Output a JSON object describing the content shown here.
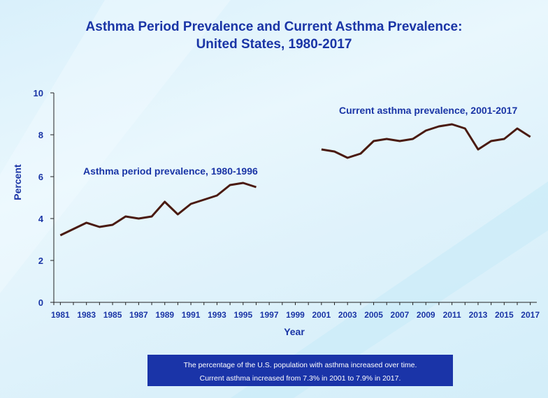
{
  "title_line1": "Asthma Period Prevalence and Current Asthma Prevalence:",
  "title_line2": "United States, 1980-2017",
  "note_line1": "The percentage of the U.S. population with asthma increased over time.",
  "note_line2": "Current asthma increased from 7.3% in 2001 to 7.9% in 2017.",
  "colors": {
    "title": "#1a35a6",
    "axis_text": "#1a35a6",
    "line": "#4a1a10",
    "note_bg": "#1a34a8"
  },
  "chart_data": {
    "type": "line",
    "title": "Asthma Period Prevalence and Current Asthma Prevalence: United States, 1980-2017",
    "xlabel": "Year",
    "ylabel": "Percent",
    "ylim": [
      0,
      10
    ],
    "xlim": [
      1980.5,
      2017.5
    ],
    "yticks": [
      0,
      2,
      4,
      6,
      8,
      10
    ],
    "xticks": [
      1981,
      1983,
      1985,
      1987,
      1989,
      1991,
      1993,
      1995,
      1997,
      1999,
      2001,
      2003,
      2005,
      2007,
      2009,
      2011,
      2013,
      2015,
      2017
    ],
    "grid": false,
    "series": [
      {
        "name": "Asthma period prevalence, 1980-1996",
        "x": [
          1981,
          1982,
          1983,
          1984,
          1985,
          1986,
          1987,
          1988,
          1989,
          1990,
          1991,
          1992,
          1993,
          1994,
          1995,
          1996
        ],
        "values": [
          3.2,
          3.5,
          3.8,
          3.6,
          3.7,
          4.1,
          4.0,
          4.1,
          4.8,
          4.2,
          4.7,
          4.9,
          5.1,
          5.6,
          5.7,
          5.5
        ]
      },
      {
        "name": "Current asthma prevalence, 2001-2017",
        "x": [
          2001,
          2002,
          2003,
          2004,
          2005,
          2006,
          2007,
          2008,
          2009,
          2010,
          2011,
          2012,
          2013,
          2014,
          2015,
          2016,
          2017
        ],
        "values": [
          7.3,
          7.2,
          6.9,
          7.1,
          7.7,
          7.8,
          7.7,
          7.8,
          8.2,
          8.4,
          8.5,
          8.3,
          7.3,
          7.7,
          7.8,
          8.3,
          7.9
        ]
      }
    ]
  }
}
